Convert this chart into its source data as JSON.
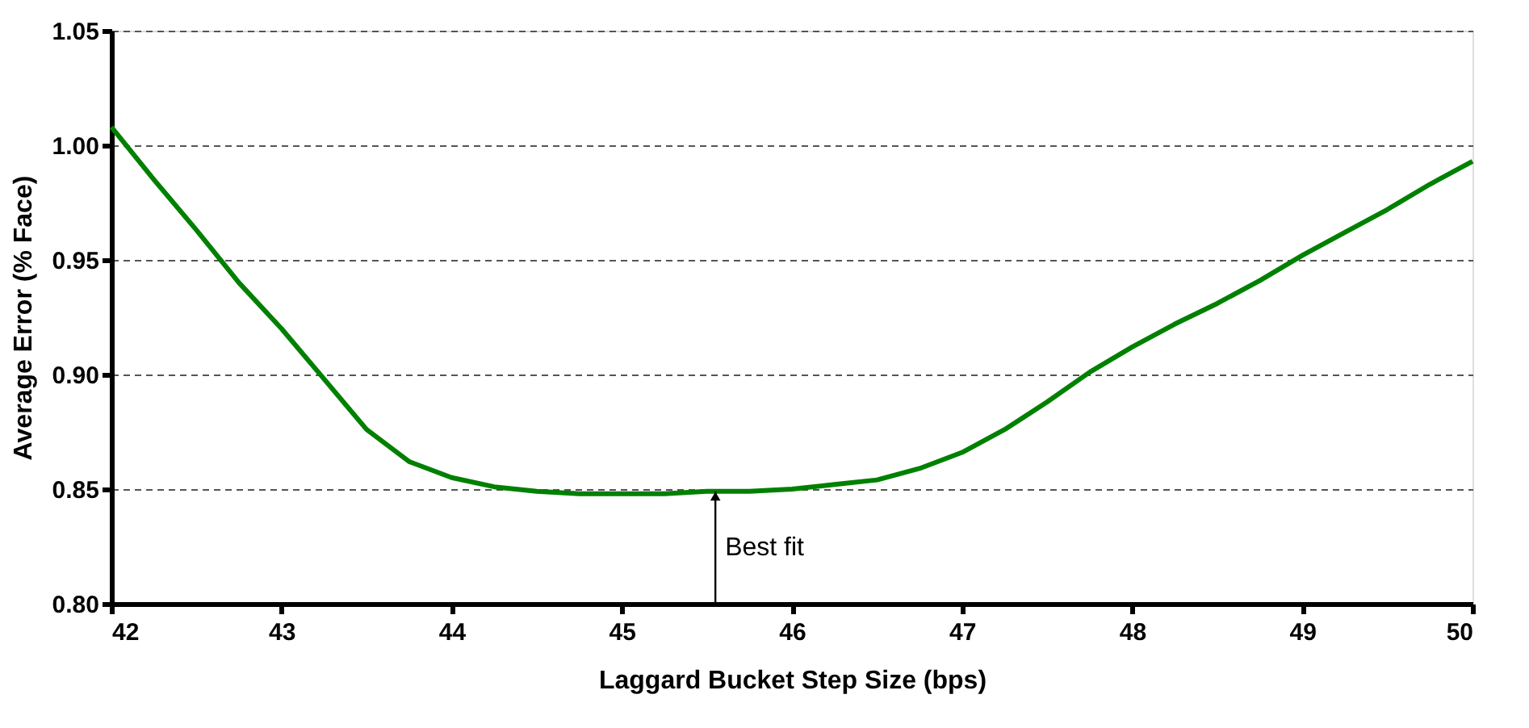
{
  "chart_data": {
    "type": "line",
    "xlabel": "Laggard Bucket Step Size (bps)",
    "ylabel": "Average Error (% Face)",
    "x": [
      42,
      42.25,
      42.5,
      42.75,
      43,
      43.25,
      43.5,
      43.75,
      44,
      44.25,
      44.5,
      44.75,
      45,
      45.25,
      45.5,
      45.75,
      46,
      46.25,
      46.5,
      46.75,
      47,
      47.25,
      47.5,
      47.75,
      48,
      48.25,
      48.5,
      48.75,
      49,
      49.25,
      49.5,
      49.75,
      50
    ],
    "series": [
      {
        "color": "#008000",
        "values": [
          1.008,
          0.985,
          0.963,
          0.94,
          0.92,
          0.898,
          0.876,
          0.862,
          0.855,
          0.851,
          0.849,
          0.848,
          0.848,
          0.848,
          0.849,
          0.849,
          0.85,
          0.852,
          0.854,
          0.859,
          0.866,
          0.876,
          0.888,
          0.901,
          0.912,
          0.922,
          0.931,
          0.941,
          0.952,
          0.962,
          0.972,
          0.983,
          0.993
        ]
      }
    ],
    "xlim": [
      42,
      50
    ],
    "xticks": [
      42,
      43,
      44,
      45,
      46,
      47,
      48,
      49,
      50
    ],
    "ylim": [
      0.8,
      1.05
    ],
    "yticks": [
      {
        "value": 0.8,
        "label": "0.80"
      },
      {
        "value": 0.85,
        "label": "0.85"
      },
      {
        "value": 0.9,
        "label": "0.90"
      },
      {
        "value": 0.95,
        "label": "0.95"
      },
      {
        "value": 1.0,
        "label": "1.00"
      },
      {
        "value": 1.05,
        "label": "1.05"
      }
    ],
    "grid": "y",
    "line_style": "solid",
    "marker": "none",
    "annotations": [
      {
        "text": "Best fit",
        "x": 45.55,
        "y": 0.849
      }
    ]
  }
}
